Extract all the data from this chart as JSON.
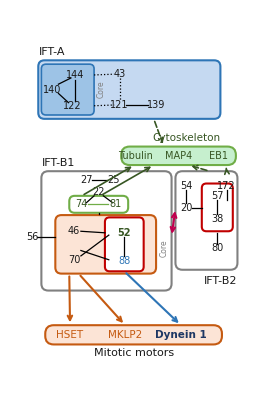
{
  "fig_width": 2.69,
  "fig_height": 4.0,
  "dpi": 100,
  "bg_color": "#ffffff",
  "ift_a_label": "IFT-A",
  "ift_b1_label": "IFT-B1",
  "ift_b2_label": "IFT-B2",
  "cytoskeleton_label": "Cytoskeleton",
  "mitotic_motors_label": "Mitotic motors",
  "core_label": "Core",
  "blue_light": "#c5d9f1",
  "blue_mid": "#9dc3e6",
  "blue_dark": "#2e75b6",
  "green_box": "#70ad47",
  "green_fill": "#c6efce",
  "green_text": "#375623",
  "orange_fill": "#fce4d6",
  "orange_border": "#c55a11",
  "red_box": "#c00000",
  "pink_arrow": "#c0004e",
  "blue_arrow": "#2e75b6",
  "orange_arrow": "#c55a11",
  "green_arrow": "#375623",
  "gray_border": "#808080",
  "dark_text": "#1a1a1a",
  "navy_text": "#1f3864"
}
